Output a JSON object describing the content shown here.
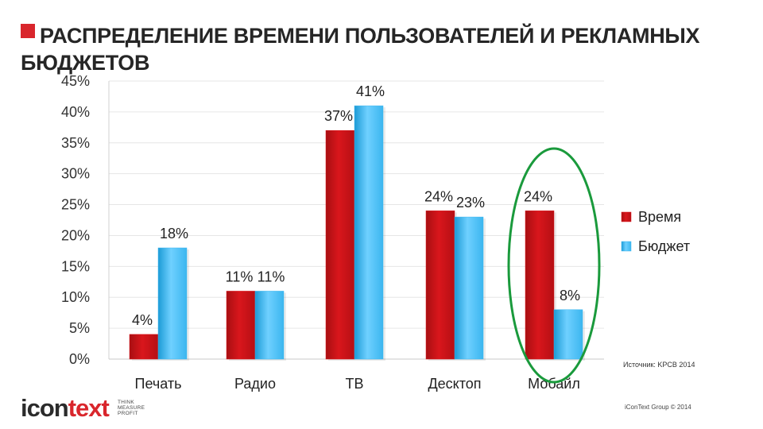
{
  "title": "РАСПРЕДЕЛЕНИЕ ВРЕМЕНИ ПОЛЬЗОВАТЕЛЕЙ И РЕКЛАМНЫХ БЮДЖЕТОВ",
  "source_note": "Источник: KPCB 2014",
  "copyright": "iConText Group © 2014",
  "logo": {
    "part1": "icon",
    "part2": "text",
    "tagline": [
      "THINK",
      "MEASURE",
      "PROFIT"
    ]
  },
  "colors": {
    "accent": "#d9262c",
    "series_time": "#d9161c",
    "series_budget": "#3bb6ef",
    "highlight_ellipse": "#1a9a3c"
  },
  "chart_data": {
    "type": "bar",
    "categories": [
      "Печать",
      "Радио",
      "ТВ",
      "Десктоп",
      "Мобайл"
    ],
    "series": [
      {
        "name": "Время",
        "values": [
          4,
          11,
          37,
          24,
          24
        ],
        "labels": [
          "4%",
          "11%",
          "37%",
          "24%",
          "24%"
        ]
      },
      {
        "name": "Бюджет",
        "values": [
          18,
          11,
          41,
          23,
          8
        ],
        "labels": [
          "18%",
          "11%",
          "41%",
          "23%",
          "8%"
        ]
      }
    ],
    "ylim": [
      0,
      45
    ],
    "yticks": [
      "0%",
      "5%",
      "10%",
      "15%",
      "20%",
      "25%",
      "30%",
      "35%",
      "40%",
      "45%"
    ],
    "grid": true,
    "legend_position": "right",
    "highlight_category": "Мобайл"
  }
}
